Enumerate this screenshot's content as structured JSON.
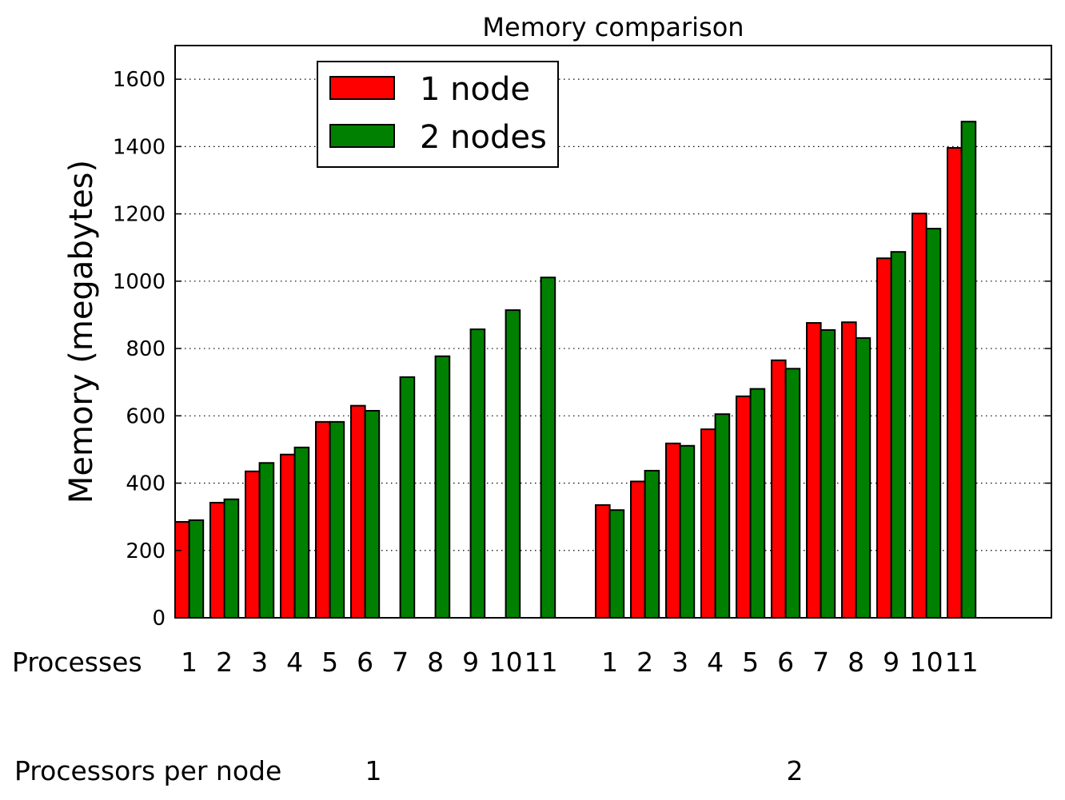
{
  "chart_data": {
    "type": "bar",
    "title": "Memory comparison",
    "ylabel": "Memory (megabytes)",
    "ylim": [
      0,
      1700
    ],
    "yticks": [
      0,
      200,
      400,
      600,
      800,
      1000,
      1200,
      1400,
      1600
    ],
    "grid": true,
    "legend_position": "top-left",
    "row_labels": {
      "processes": "Processes",
      "processors_per_node": "Processors per node"
    },
    "groups": [
      {
        "processors_per_node": "1",
        "categories": [
          "1",
          "2",
          "3",
          "4",
          "5",
          "6",
          "7",
          "8",
          "9",
          "10",
          "11"
        ],
        "series": [
          {
            "name": "1 node",
            "color": "#ff0000",
            "values": [
              285,
              342,
              435,
              485,
              582,
              630,
              0,
              0,
              0,
              0,
              0
            ]
          },
          {
            "name": "2 nodes",
            "color": "#008000",
            "values": [
              290,
              352,
              460,
              506,
              582,
              615,
              715,
              777,
              857,
              914,
              1011
            ]
          }
        ]
      },
      {
        "processors_per_node": "2",
        "categories": [
          "1",
          "2",
          "3",
          "4",
          "5",
          "6",
          "7",
          "8",
          "9",
          "10",
          "11"
        ],
        "series": [
          {
            "name": "1 node",
            "color": "#ff0000",
            "values": [
              335,
              405,
              518,
              560,
              658,
              765,
              876,
              878,
              1068,
              1201,
              1396
            ]
          },
          {
            "name": "2 nodes",
            "color": "#008000",
            "values": [
              320,
              437,
              511,
              605,
              680,
              740,
              855,
              831,
              1087,
              1156,
              1474
            ]
          }
        ]
      }
    ]
  }
}
